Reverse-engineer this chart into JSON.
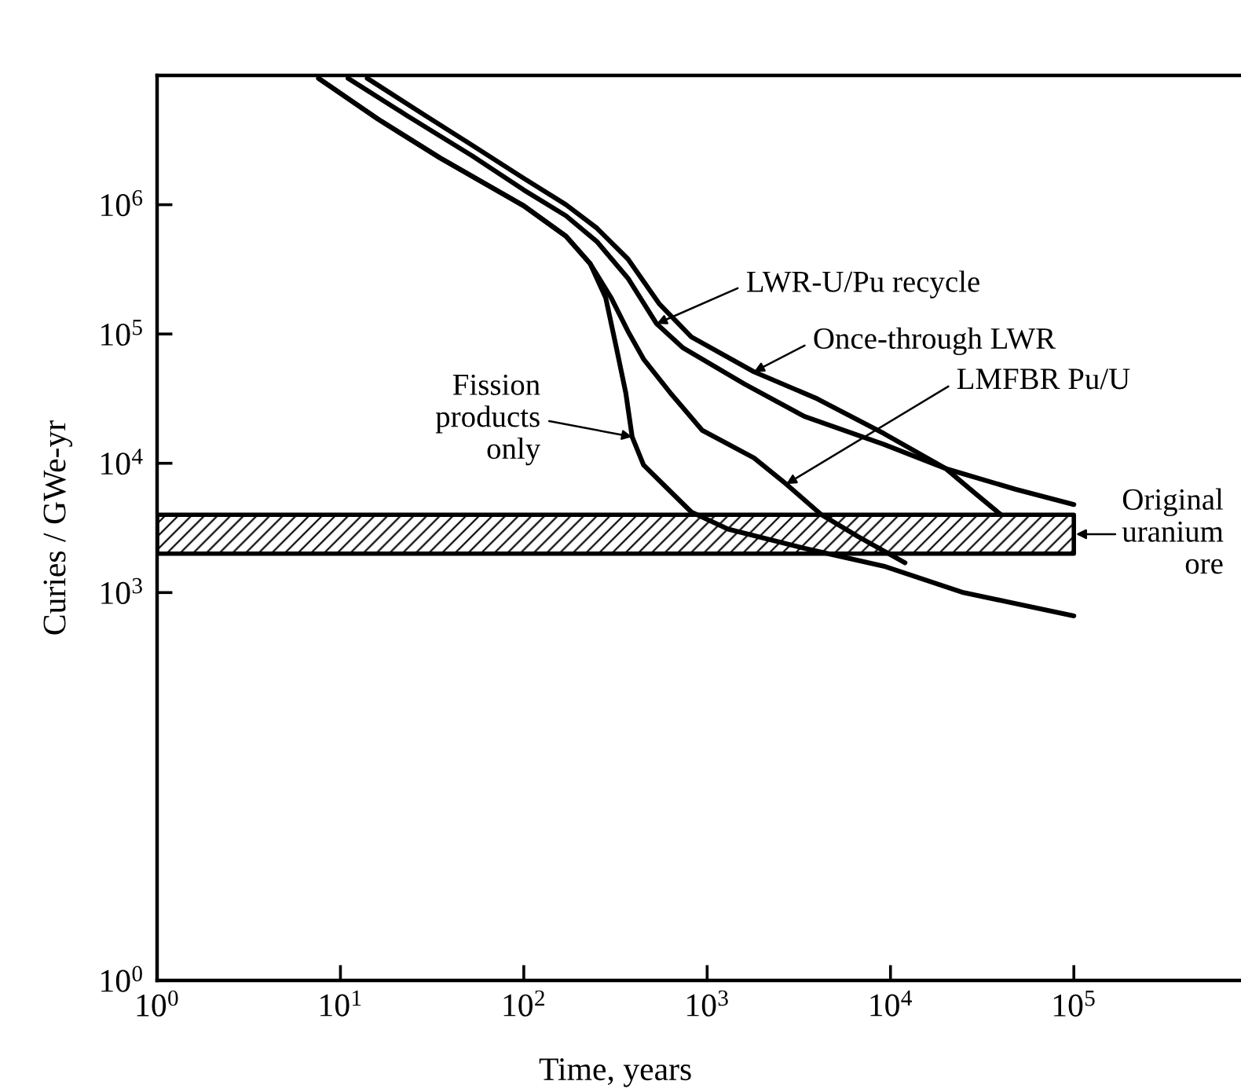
{
  "chart_data": {
    "type": "line",
    "xlabel": "Time, years",
    "ylabel": "Curies / GWe-yr",
    "log": "xy",
    "line_style": "solid",
    "xlim": [
      1,
      800000
    ],
    "ylim": [
      1,
      10000000
    ],
    "xticks": [
      {
        "value": 1,
        "label": "10$^{0}$"
      },
      {
        "value": 10,
        "label": "10$^{1}$"
      },
      {
        "value": 100,
        "label": "10$^{2}$"
      },
      {
        "value": 1000,
        "label": "10$^{3}$"
      },
      {
        "value": 10000,
        "label": "10$^{4}$"
      },
      {
        "value": 100000,
        "label": "10$^{5}$"
      }
    ],
    "yticks": [
      {
        "value": 1,
        "label": "10$^{0}$"
      },
      {
        "value": 1000,
        "label": "10$^{3}$"
      },
      {
        "value": 10000,
        "label": "10$^{4}$"
      },
      {
        "value": 100000,
        "label": "10$^{5}$"
      },
      {
        "value": 1000000,
        "label": "10$^{6}$"
      }
    ],
    "series": [
      {
        "color": "#000000",
        "x": [
          14,
          29,
          52,
          100,
          170,
          250,
          370,
          550,
          820,
          1800,
          3900,
          9200,
          20000,
          28000,
          40000
        ],
        "values": [
          9500000,
          4900000,
          2900000,
          1600000,
          1000000,
          660000,
          380000,
          170000,
          95000,
          51000,
          32000,
          17000,
          9100,
          6100,
          4000
        ]
      },
      {
        "color": "#000000",
        "x": [
          11,
          23,
          52,
          100,
          170,
          250,
          370,
          530,
          740,
          1600,
          3400,
          9200,
          20000,
          48000,
          100000
        ],
        "values": [
          9500000,
          4900000,
          2400000,
          1300000,
          820000,
          520000,
          270000,
          120000,
          78000,
          41000,
          23000,
          14000,
          9100,
          6300,
          4800
        ]
      },
      {
        "color": "#000000",
        "x": [
          7.6,
          16,
          35,
          100,
          170,
          230,
          300,
          370,
          450,
          630,
          940,
          1800,
          2700,
          4200,
          6700,
          12000
        ],
        "values": [
          9500000,
          4600000,
          2300000,
          980000,
          570000,
          350000,
          190000,
          105000,
          64000,
          35000,
          18000,
          11000,
          6900,
          4000,
          2700,
          1700
        ]
      },
      {
        "color": "#000000",
        "x": [
          7.6,
          16,
          35,
          100,
          170,
          230,
          280,
          320,
          360,
          390,
          450,
          580,
          820,
          1300,
          3400,
          9200,
          25000,
          100000
        ],
        "values": [
          9500000,
          4600000,
          2300000,
          980000,
          570000,
          350000,
          190000,
          78000,
          35000,
          16000,
          9700,
          6800,
          4200,
          3100,
          2200,
          1600,
          1000,
          660
        ]
      }
    ],
    "bands": [
      {
        "axis": "y",
        "from": 2000,
        "to": 4000,
        "label": "Original\nuranium\nore"
      }
    ],
    "annotations": [
      {
        "text": "LWR-U/Pu recycle",
        "x": 530,
        "y": 120000
      },
      {
        "text": "Once-through LWR",
        "x": 1800,
        "y": 51000
      },
      {
        "text": "LMFBR Pu/U",
        "x": 2700,
        "y": 6900
      },
      {
        "text": "Fission\nproducts\nonly",
        "x": 390,
        "y": 16000
      }
    ]
  }
}
